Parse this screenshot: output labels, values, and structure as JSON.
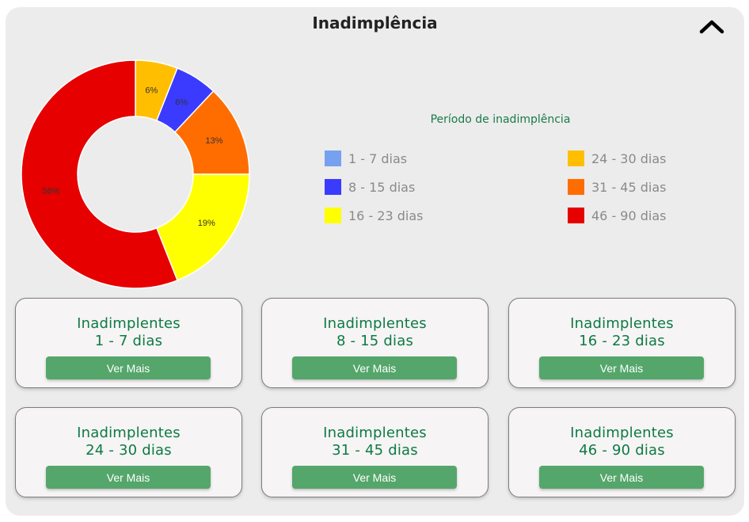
{
  "header": {
    "title": "Inadimplência"
  },
  "legend": {
    "title": "Período de inadimplência",
    "items": [
      {
        "label": "1 - 7 dias",
        "color": "#76a1ee"
      },
      {
        "label": "8 - 15 dias",
        "color": "#3b3bff"
      },
      {
        "label": "16 - 23 dias",
        "color": "#ffff00"
      },
      {
        "label": "24 - 30 dias",
        "color": "#ffbf00"
      },
      {
        "label": "31 - 45 dias",
        "color": "#ff6d00"
      },
      {
        "label": "46 - 90 dias",
        "color": "#e60000"
      }
    ]
  },
  "chart_data": {
    "type": "pie",
    "categories": [
      "1 - 7 dias",
      "8 - 15 dias",
      "16 - 23 dias",
      "24 - 30 dias",
      "31 - 45 dias",
      "46 - 90 dias"
    ],
    "values": [
      0,
      6,
      19,
      6,
      13,
      56
    ],
    "value_labels": [
      "",
      "6%",
      "19%",
      "6%",
      "13%",
      "56%"
    ],
    "colors": [
      "#76a1ee",
      "#3b3bff",
      "#ffff00",
      "#ffbf00",
      "#ff6d00",
      "#e60000"
    ],
    "slice_order": [
      3,
      1,
      4,
      2,
      5
    ],
    "donut": true,
    "legend_position": "right"
  },
  "cards": [
    {
      "line1": "Inadimplentes",
      "line2": "1 - 7 dias",
      "button": "Ver Mais"
    },
    {
      "line1": "Inadimplentes",
      "line2": "8 - 15 dias",
      "button": "Ver Mais"
    },
    {
      "line1": "Inadimplentes",
      "line2": "16 - 23 dias",
      "button": "Ver Mais"
    },
    {
      "line1": "Inadimplentes",
      "line2": "24 - 30 dias",
      "button": "Ver Mais"
    },
    {
      "line1": "Inadimplentes",
      "line2": "31 - 45 dias",
      "button": "Ver Mais"
    },
    {
      "line1": "Inadimplentes",
      "line2": "46 - 90 dias",
      "button": "Ver Mais"
    }
  ]
}
